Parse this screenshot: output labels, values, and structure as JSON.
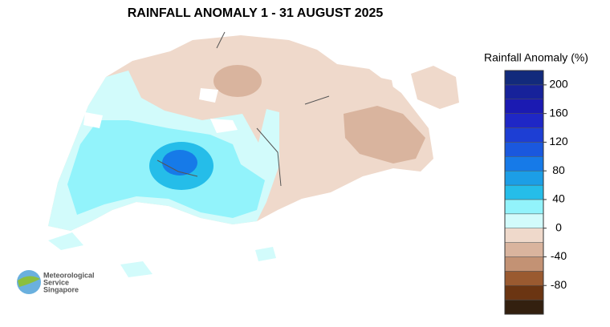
{
  "title": "RAINFALL ANOMALY 1 - 31 AUGUST 2025",
  "legend": {
    "title": "Rainfall Anomaly (%)",
    "bounds": [
      -120,
      -100,
      -80,
      -60,
      -40,
      -20,
      0,
      20,
      40,
      60,
      80,
      100,
      120,
      140,
      160,
      180,
      200,
      220
    ],
    "colors": [
      "#33200f",
      "#6b3512",
      "#9a5a30",
      "#c39274",
      "#d9b49e",
      "#efd9cb",
      "#d2fbfb",
      "#92f3fb",
      "#25bde9",
      "#1c9ee6",
      "#167ae8",
      "#1a58de",
      "#1d3ed4",
      "#1f27c6",
      "#1b1ab2",
      "#17229a",
      "#122a7c"
    ],
    "ticks": [
      -80,
      -40,
      0,
      40,
      80,
      120,
      160,
      200
    ]
  },
  "logo": {
    "lines": [
      "Meteorological",
      "Service",
      "Singapore"
    ]
  }
}
